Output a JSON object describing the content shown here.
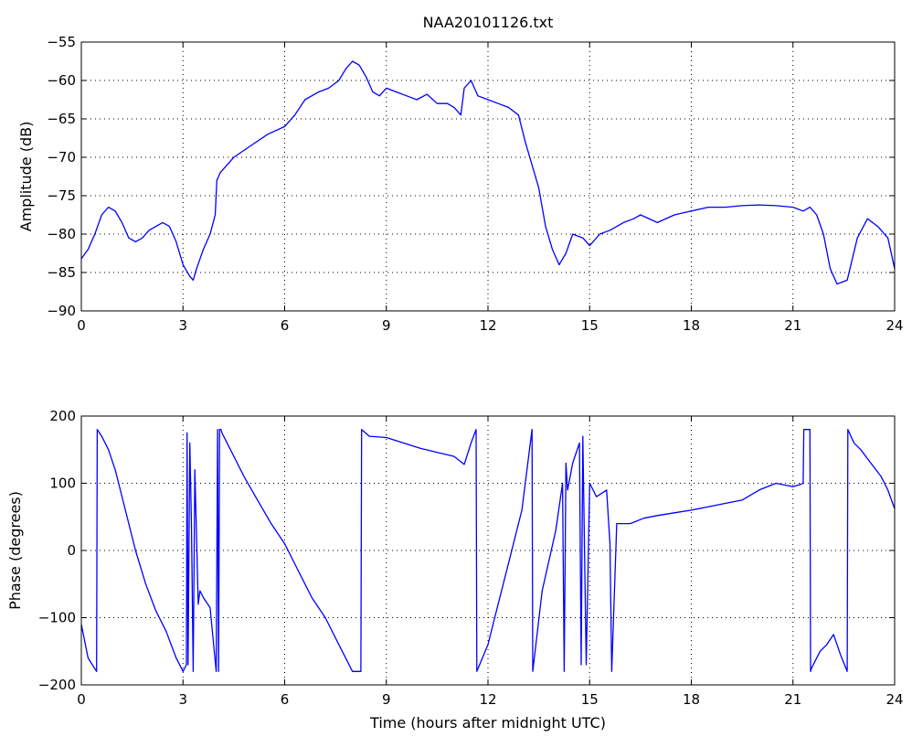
{
  "chart_data": [
    {
      "type": "line",
      "title": "NAA20101126.txt",
      "xlabel": "",
      "ylabel": "Amplitude (dB)",
      "xlim": [
        0,
        24
      ],
      "ylim": [
        -90,
        -55
      ],
      "xticks": [
        0,
        3,
        6,
        9,
        12,
        15,
        18,
        21,
        24
      ],
      "yticks": [
        -55,
        -60,
        -65,
        -70,
        -75,
        -80,
        -85,
        -90
      ],
      "grid": true,
      "color": "#0000ff",
      "series": [
        {
          "x": [
            0,
            0.2,
            0.4,
            0.6,
            0.8,
            1.0,
            1.2,
            1.4,
            1.6,
            1.8,
            2.0,
            2.2,
            2.4,
            2.6,
            2.8,
            3.0,
            3.2,
            3.3,
            3.4,
            3.6,
            3.8,
            3.95,
            4.0,
            4.05,
            4.1,
            4.5,
            5.0,
            5.5,
            6.0,
            6.3,
            6.6,
            7.0,
            7.3,
            7.6,
            7.8,
            8.0,
            8.2,
            8.4,
            8.6,
            8.8,
            9.0,
            9.3,
            9.6,
            9.9,
            10.2,
            10.5,
            10.8,
            11.0,
            11.2,
            11.3,
            11.5,
            11.7,
            12.0,
            12.3,
            12.6,
            12.9,
            13.1,
            13.3,
            13.5,
            13.7,
            13.9,
            14.1,
            14.3,
            14.5,
            14.8,
            15.0,
            15.3,
            15.6,
            16.0,
            16.3,
            16.5,
            17.0,
            17.5,
            18.0,
            18.5,
            19.0,
            19.5,
            20.0,
            20.5,
            21.0,
            21.3,
            21.5,
            21.7,
            21.9,
            22.1,
            22.3,
            22.6,
            22.9,
            23.2,
            23.5,
            23.8,
            24.0
          ],
          "values": [
            -83.2,
            -82,
            -80,
            -77.5,
            -76.5,
            -77,
            -78.5,
            -80.5,
            -81,
            -80.5,
            -79.5,
            -79,
            -78.5,
            -79,
            -81,
            -84,
            -85.5,
            -86,
            -84.5,
            -82,
            -80,
            -77.5,
            -73,
            -72.5,
            -72,
            -70,
            -68.5,
            -67,
            -66,
            -64.5,
            -62.5,
            -61.5,
            -61,
            -60,
            -58.5,
            -57.5,
            -58,
            -59.5,
            -61.5,
            -62,
            -61,
            -61.5,
            -62,
            -62.5,
            -61.8,
            -63,
            -63,
            -63.5,
            -64.5,
            -61,
            -60,
            -62,
            -62.5,
            -63,
            -63.5,
            -64.5,
            -68,
            -71,
            -74,
            -79,
            -82,
            -84,
            -82.5,
            -80,
            -80.5,
            -81.5,
            -80,
            -79.5,
            -78.5,
            -78,
            -77.5,
            -78.5,
            -77.5,
            -77,
            -76.5,
            -76.5,
            -76.3,
            -76.2,
            -76.3,
            -76.5,
            -77,
            -76.5,
            -77.5,
            -80,
            -84.5,
            -86.5,
            -86,
            -80.5,
            -78,
            -79,
            -80.5,
            -84.5
          ]
        }
      ]
    },
    {
      "type": "line",
      "title": "",
      "xlabel": "Time (hours after midnight UTC)",
      "ylabel": "Phase (degrees)",
      "xlim": [
        0,
        24
      ],
      "ylim": [
        -200,
        200
      ],
      "xticks": [
        0,
        3,
        6,
        9,
        12,
        15,
        18,
        21,
        24
      ],
      "yticks": [
        200,
        100,
        0,
        -100,
        -200
      ],
      "grid": true,
      "color": "#0000ff",
      "series": [
        {
          "x": [
            0,
            0.2,
            0.45,
            0.47,
            0.6,
            0.8,
            1.0,
            1.3,
            1.6,
            1.9,
            2.2,
            2.5,
            2.8,
            3.0,
            3.1,
            3.12,
            3.15,
            3.2,
            3.25,
            3.3,
            3.35,
            3.4,
            3.45,
            3.5,
            3.6,
            3.8,
            3.98,
            4.02,
            4.05,
            4.08,
            4.12,
            4.15,
            4.4,
            4.8,
            5.2,
            5.6,
            6.0,
            6.4,
            6.8,
            7.2,
            7.6,
            8.0,
            8.25,
            8.27,
            8.5,
            9.0,
            9.5,
            10.0,
            10.5,
            11.0,
            11.3,
            11.5,
            11.65,
            11.67,
            12.0,
            12.3,
            12.6,
            13.0,
            13.3,
            13.32,
            13.6,
            14.0,
            14.2,
            14.25,
            14.3,
            14.35,
            14.5,
            14.7,
            14.75,
            14.8,
            14.9,
            15.0,
            15.2,
            15.5,
            15.6,
            15.65,
            15.8,
            16.2,
            16.6,
            17.0,
            17.5,
            18.0,
            18.5,
            19.0,
            19.5,
            20.0,
            20.5,
            21.0,
            21.2,
            21.3,
            21.32,
            21.5,
            21.52,
            21.55,
            21.8,
            22.0,
            22.2,
            22.4,
            22.6,
            22.62,
            22.8,
            23.0,
            23.3,
            23.6,
            23.8,
            24.0
          ],
          "values": [
            -110,
            -160,
            -180,
            180,
            170,
            150,
            120,
            60,
            0,
            -50,
            -90,
            -120,
            -160,
            -180,
            -170,
            175,
            -170,
            160,
            40,
            -180,
            120,
            20,
            -80,
            -60,
            -70,
            -85,
            -180,
            180,
            -180,
            180,
            180,
            175,
            150,
            110,
            75,
            40,
            10,
            -30,
            -70,
            -100,
            -140,
            -180,
            -180,
            180,
            170,
            168,
            160,
            152,
            146,
            140,
            128,
            160,
            180,
            -180,
            -140,
            -80,
            -20,
            60,
            180,
            -180,
            -60,
            30,
            100,
            -180,
            130,
            90,
            130,
            160,
            -170,
            170,
            -170,
            100,
            80,
            90,
            10,
            -180,
            40,
            40,
            48,
            52,
            56,
            60,
            65,
            70,
            75,
            90,
            100,
            95,
            98,
            100,
            180,
            180,
            -180,
            -175,
            -150,
            -140,
            -125,
            -155,
            -180,
            180,
            160,
            150,
            130,
            110,
            90,
            62
          ]
        }
      ]
    }
  ]
}
